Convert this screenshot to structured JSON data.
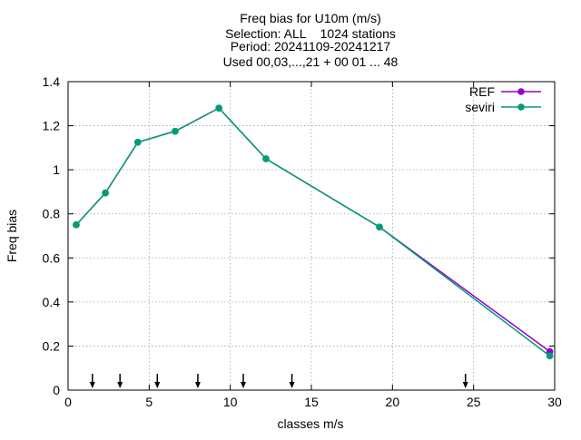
{
  "chart_data": {
    "type": "line",
    "title": [
      "Freq bias  for U10m (m/s)",
      "Selection: ALL    1024 stations",
      "Period: 20241109-20241217",
      "Used 00,03,...,21 + 00 01 ... 48"
    ],
    "xlabel": "classes m/s",
    "ylabel": "Freq bias",
    "xlim": [
      0,
      30
    ],
    "ylim": [
      0,
      1.4
    ],
    "xticks": [
      0,
      5,
      10,
      15,
      20,
      25,
      30
    ],
    "xtick_labels": [
      "0",
      "5",
      "10",
      "15",
      "20",
      "25",
      "30"
    ],
    "yticks": [
      0,
      0.2,
      0.4,
      0.6,
      0.8,
      1,
      1.2,
      1.4
    ],
    "ytick_labels": [
      "0",
      "0.2",
      "0.4",
      "0.6",
      "0.8",
      "1",
      "1.2",
      "1.4"
    ],
    "grid": true,
    "legend_position": "top-right",
    "series": [
      {
        "name": "REF",
        "color": "#9400d3",
        "x": [
          0.5,
          2.3,
          4.3,
          6.6,
          9.3,
          12.2,
          19.2,
          29.7
        ],
        "y": [
          0.75,
          0.895,
          1.125,
          1.175,
          1.28,
          1.05,
          0.74,
          0.175
        ]
      },
      {
        "name": "seviri",
        "color": "#009e73",
        "x": [
          0.5,
          2.3,
          4.3,
          6.6,
          9.3,
          12.2,
          19.2,
          29.7
        ],
        "y": [
          0.75,
          0.895,
          1.125,
          1.175,
          1.28,
          1.05,
          0.74,
          0.155
        ]
      }
    ],
    "arrows_x": [
      1.5,
      3.2,
      5.5,
      8.0,
      10.8,
      13.8,
      24.5
    ]
  }
}
